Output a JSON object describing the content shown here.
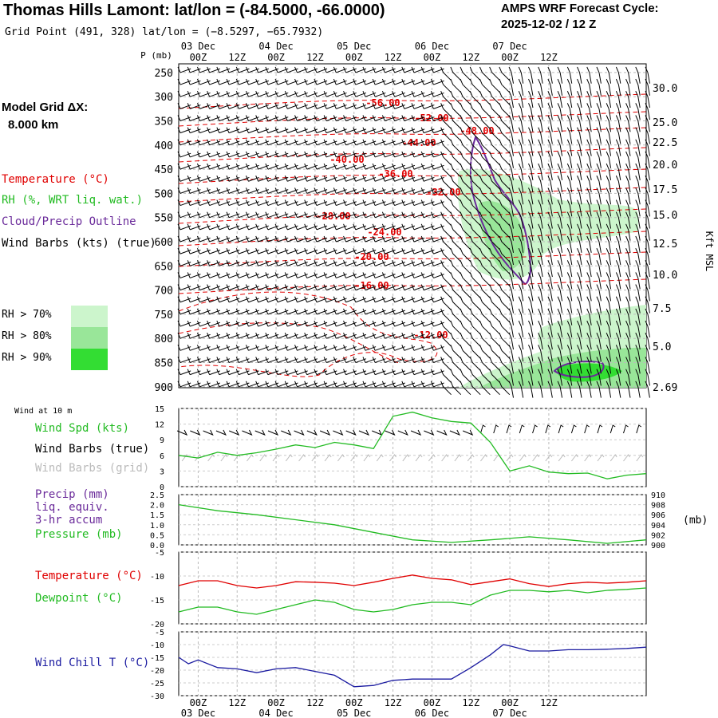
{
  "header": {
    "title": "Thomas Hills Lamont:  lat/lon = (-84.5000, -66.0000)",
    "subtitle": "Grid Point (491, 328) lat/lon = (−8.5297, −65.7932)",
    "cycle_line1": "AMPS WRF Forecast Cycle:",
    "cycle_line2": "2025-12-02 / 12  Z",
    "grid_label": "Model Grid ΔX:",
    "grid_value": "8.000 km"
  },
  "legend": {
    "temperature": "Temperature (°C)",
    "rh": "RH (%, WRT liq. wat.)",
    "cloud": "Cloud/Precip Outline",
    "wind": "Wind Barbs (kts) (true)",
    "rh70": "RH > 70%",
    "rh80": "RH > 80%",
    "rh90": "RH > 90%",
    "wind10m": "Wind at 10 m",
    "wind_spd": "Wind Spd (kts)",
    "wind_barbs_true": "Wind Barbs (true)",
    "wind_barbs_grid": "Wind Barbs (grid)",
    "precip1": "Precip (mm)",
    "precip2": "liq. equiv.",
    "precip3": "3-hr accum",
    "pressure": "Pressure (mb)",
    "temp2": "Temperature (°C)",
    "dewpoint": "Dewpoint (°C)",
    "windchill": "Wind Chill T (°C)",
    "mb_unit": "(mb)",
    "p_unit": "P (mb)",
    "kft": "Kft MSL"
  },
  "colors": {
    "temperature": "#e00000",
    "rh70": "#ccf5cc",
    "rh80": "#99e699",
    "rh90": "#33dd33",
    "cloud": "#6a2a9a",
    "wind_spd": "#22bb22",
    "pressure": "#22bb22",
    "dewpoint": "#22bb22",
    "windchill": "#1a1aa0",
    "precip": "#6a2a9a"
  },
  "chart_data": [
    {
      "type": "line",
      "panel": "cross-section",
      "time_labels": [
        "00Z",
        "12Z",
        "00Z",
        "12Z",
        "00Z",
        "12Z",
        "00Z",
        "12Z",
        "00Z",
        "12Z"
      ],
      "date_labels": [
        "03 Dec",
        "04 Dec",
        "05 Dec",
        "06 Dec",
        "07 Dec"
      ],
      "pressure_ticks": [
        "250",
        "300",
        "350",
        "400",
        "450",
        "500",
        "550",
        "600",
        "650",
        "700",
        "750",
        "800",
        "850",
        "900"
      ],
      "height_ticks": [
        "30.0",
        "25.0",
        "22.5",
        "20.0",
        "17.5",
        "15.0",
        "12.5",
        "10.0",
        "7.5",
        "5.0",
        "2.69"
      ],
      "isotherm_labels": [
        "-56.00",
        "-52.00",
        "-48.00",
        "-44.00",
        "-40.00",
        "-36.00",
        "-32.00",
        "-28.00",
        "-24.00",
        "-20.00",
        "-16.00",
        "-12.00"
      ]
    },
    {
      "type": "line",
      "panel": "wind-speed",
      "yticks": [
        "15",
        "12",
        "9",
        "6",
        "3",
        "0"
      ],
      "ylim": [
        0,
        15
      ],
      "x_hours": [
        0,
        6,
        12,
        18,
        24,
        30,
        36,
        42,
        48,
        54,
        60,
        66,
        72,
        78,
        84,
        90,
        96,
        102,
        108,
        114,
        120,
        126,
        132,
        138,
        144
      ],
      "wind_spd": [
        6.0,
        5.5,
        6.6,
        6.0,
        6.5,
        7.2,
        8.0,
        7.5,
        8.5,
        8.0,
        7.3,
        13.5,
        14.3,
        13.2,
        12.5,
        12.2,
        8.5,
        3.0,
        4.0,
        2.8,
        2.5,
        2.6,
        1.5,
        2.2,
        2.5
      ]
    },
    {
      "type": "line",
      "panel": "precip-pressure",
      "precip_ticks": [
        "2.5",
        "2.0",
        "1.5",
        "1.0",
        "0.5",
        "0.0"
      ],
      "pressure_ticks": [
        "910",
        "908",
        "906",
        "904",
        "902",
        "900"
      ],
      "x_hours": [
        0,
        12,
        24,
        36,
        48,
        60,
        72,
        84,
        96,
        108,
        120,
        132,
        144
      ],
      "pressure": [
        908.0,
        906.8,
        906.0,
        905.0,
        904.0,
        902.5,
        901.0,
        900.5,
        901.0,
        901.6,
        901.0,
        900.3,
        901.0
      ]
    },
    {
      "type": "line",
      "panel": "temperature",
      "yticks": [
        "-5",
        "-10",
        "-15",
        "-20"
      ],
      "ylim": [
        -20,
        -5
      ],
      "x_hours": [
        0,
        6,
        12,
        18,
        24,
        30,
        36,
        42,
        48,
        54,
        60,
        66,
        72,
        78,
        84,
        90,
        96,
        102,
        108,
        114,
        120,
        126,
        132,
        138,
        144
      ],
      "temperature": [
        -12.0,
        -11.0,
        -11.0,
        -12.0,
        -12.5,
        -12.0,
        -11.2,
        -11.3,
        -11.5,
        -12.0,
        -11.3,
        -10.5,
        -9.8,
        -10.5,
        -10.8,
        -11.8,
        -11.2,
        -10.6,
        -11.6,
        -12.2,
        -11.6,
        -11.3,
        -11.5,
        -11.3,
        -11.0
      ],
      "dewpoint": [
        -17.5,
        -16.5,
        -16.5,
        -17.5,
        -18.0,
        -17.0,
        -16.0,
        -15.0,
        -15.5,
        -17.0,
        -17.5,
        -17.0,
        -16.0,
        -15.5,
        -15.5,
        -16.0,
        -14.0,
        -13.0,
        -13.0,
        -13.3,
        -13.0,
        -13.5,
        -13.0,
        -12.8,
        -12.5
      ]
    },
    {
      "type": "line",
      "panel": "wind-chill",
      "yticks": [
        "-5",
        "-10",
        "-15",
        "-20",
        "-25",
        "-30"
      ],
      "ylim": [
        -30,
        -5
      ],
      "x_hours": [
        0,
        3,
        6,
        12,
        18,
        24,
        30,
        36,
        42,
        48,
        54,
        60,
        66,
        72,
        78,
        84,
        90,
        96,
        100,
        102,
        108,
        114,
        120,
        126,
        132,
        138,
        144
      ],
      "windchill": [
        -15.0,
        -17.5,
        -16.0,
        -19.0,
        -19.5,
        -21.0,
        -19.5,
        -19.0,
        -20.5,
        -22.0,
        -26.5,
        -26.0,
        -24.0,
        -23.5,
        -23.5,
        -23.5,
        -19.0,
        -14.0,
        -10.0,
        -10.5,
        -12.5,
        -12.5,
        -12.0,
        -12.0,
        -11.8,
        -11.5,
        -11.0
      ]
    }
  ]
}
